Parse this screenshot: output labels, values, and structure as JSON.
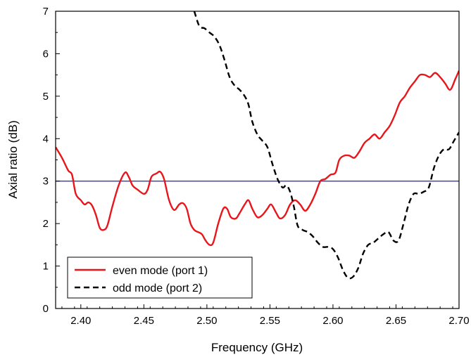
{
  "chart_data": {
    "type": "line",
    "title": "",
    "xlabel": "Frequency (GHz)",
    "ylabel": "Axial ratio (dB)",
    "xlim": [
      2.38,
      2.7
    ],
    "ylim": [
      0,
      7
    ],
    "x_ticks": [
      "2.40",
      "2.45",
      "2.50",
      "2.55",
      "2.60",
      "2.65",
      "2.70"
    ],
    "y_ticks": [
      "0",
      "1",
      "2",
      "3",
      "4",
      "5",
      "6",
      "7"
    ],
    "grid": false,
    "legend_position": "bottom-left",
    "reference_line": {
      "y": 3,
      "color": "#1f1fbf"
    },
    "series": [
      {
        "name": "even mode (port 1)",
        "color": "#e8151b",
        "style": "solid",
        "points": [
          [
            2.38,
            3.8
          ],
          [
            2.385,
            3.55
          ],
          [
            2.39,
            3.25
          ],
          [
            2.393,
            3.15
          ],
          [
            2.396,
            2.7
          ],
          [
            2.4,
            2.55
          ],
          [
            2.403,
            2.45
          ],
          [
            2.406,
            2.5
          ],
          [
            2.409,
            2.42
          ],
          [
            2.412,
            2.2
          ],
          [
            2.415,
            1.9
          ],
          [
            2.418,
            1.85
          ],
          [
            2.421,
            1.95
          ],
          [
            2.425,
            2.4
          ],
          [
            2.43,
            2.9
          ],
          [
            2.435,
            3.2
          ],
          [
            2.438,
            3.1
          ],
          [
            2.441,
            2.9
          ],
          [
            2.445,
            2.8
          ],
          [
            2.45,
            2.7
          ],
          [
            2.453,
            2.8
          ],
          [
            2.456,
            3.1
          ],
          [
            2.46,
            3.18
          ],
          [
            2.463,
            3.22
          ],
          [
            2.466,
            3.05
          ],
          [
            2.47,
            2.55
          ],
          [
            2.474,
            2.32
          ],
          [
            2.478,
            2.45
          ],
          [
            2.481,
            2.48
          ],
          [
            2.484,
            2.35
          ],
          [
            2.487,
            2.0
          ],
          [
            2.49,
            1.85
          ],
          [
            2.493,
            1.8
          ],
          [
            2.496,
            1.75
          ],
          [
            2.499,
            1.6
          ],
          [
            2.502,
            1.5
          ],
          [
            2.505,
            1.55
          ],
          [
            2.509,
            2.0
          ],
          [
            2.513,
            2.35
          ],
          [
            2.516,
            2.35
          ],
          [
            2.519,
            2.15
          ],
          [
            2.523,
            2.12
          ],
          [
            2.526,
            2.25
          ],
          [
            2.53,
            2.45
          ],
          [
            2.533,
            2.55
          ],
          [
            2.536,
            2.35
          ],
          [
            2.54,
            2.15
          ],
          [
            2.544,
            2.2
          ],
          [
            2.548,
            2.35
          ],
          [
            2.551,
            2.45
          ],
          [
            2.555,
            2.25
          ],
          [
            2.558,
            2.12
          ],
          [
            2.562,
            2.2
          ],
          [
            2.566,
            2.45
          ],
          [
            2.57,
            2.55
          ],
          [
            2.574,
            2.45
          ],
          [
            2.578,
            2.3
          ],
          [
            2.582,
            2.45
          ],
          [
            2.586,
            2.7
          ],
          [
            2.59,
            3.0
          ],
          [
            2.594,
            3.05
          ],
          [
            2.598,
            3.15
          ],
          [
            2.602,
            3.2
          ],
          [
            2.605,
            3.5
          ],
          [
            2.609,
            3.6
          ],
          [
            2.613,
            3.6
          ],
          [
            2.617,
            3.55
          ],
          [
            2.621,
            3.7
          ],
          [
            2.625,
            3.9
          ],
          [
            2.629,
            4.0
          ],
          [
            2.633,
            4.1
          ],
          [
            2.637,
            4.0
          ],
          [
            2.641,
            4.15
          ],
          [
            2.645,
            4.3
          ],
          [
            2.649,
            4.55
          ],
          [
            2.653,
            4.85
          ],
          [
            2.657,
            5.0
          ],
          [
            2.661,
            5.2
          ],
          [
            2.665,
            5.35
          ],
          [
            2.669,
            5.5
          ],
          [
            2.673,
            5.5
          ],
          [
            2.677,
            5.45
          ],
          [
            2.681,
            5.55
          ],
          [
            2.685,
            5.45
          ],
          [
            2.689,
            5.3
          ],
          [
            2.693,
            5.15
          ],
          [
            2.697,
            5.4
          ],
          [
            2.7,
            5.6
          ]
        ]
      },
      {
        "name": "odd mode (port 2)",
        "color": "#000000",
        "style": "dashed",
        "points": [
          [
            2.49,
            7.0
          ],
          [
            2.494,
            6.65
          ],
          [
            2.498,
            6.6
          ],
          [
            2.502,
            6.5
          ],
          [
            2.506,
            6.4
          ],
          [
            2.51,
            6.2
          ],
          [
            2.514,
            5.85
          ],
          [
            2.518,
            5.45
          ],
          [
            2.522,
            5.25
          ],
          [
            2.526,
            5.15
          ],
          [
            2.53,
            5.0
          ],
          [
            2.533,
            4.8
          ],
          [
            2.536,
            4.4
          ],
          [
            2.54,
            4.1
          ],
          [
            2.544,
            3.95
          ],
          [
            2.548,
            3.8
          ],
          [
            2.552,
            3.4
          ],
          [
            2.556,
            3.05
          ],
          [
            2.56,
            2.85
          ],
          [
            2.563,
            2.9
          ],
          [
            2.566,
            2.75
          ],
          [
            2.569,
            2.4
          ],
          [
            2.572,
            1.95
          ],
          [
            2.576,
            1.85
          ],
          [
            2.58,
            1.8
          ],
          [
            2.584,
            1.7
          ],
          [
            2.588,
            1.55
          ],
          [
            2.592,
            1.45
          ],
          [
            2.596,
            1.45
          ],
          [
            2.6,
            1.4
          ],
          [
            2.604,
            1.2
          ],
          [
            2.608,
            0.9
          ],
          [
            2.612,
            0.72
          ],
          [
            2.616,
            0.75
          ],
          [
            2.62,
            0.95
          ],
          [
            2.624,
            1.3
          ],
          [
            2.628,
            1.5
          ],
          [
            2.632,
            1.55
          ],
          [
            2.636,
            1.65
          ],
          [
            2.64,
            1.75
          ],
          [
            2.644,
            1.8
          ],
          [
            2.648,
            1.6
          ],
          [
            2.652,
            1.6
          ],
          [
            2.656,
            2.0
          ],
          [
            2.66,
            2.45
          ],
          [
            2.664,
            2.7
          ],
          [
            2.668,
            2.7
          ],
          [
            2.672,
            2.75
          ],
          [
            2.676,
            2.85
          ],
          [
            2.68,
            3.3
          ],
          [
            2.684,
            3.6
          ],
          [
            2.688,
            3.75
          ],
          [
            2.692,
            3.75
          ],
          [
            2.696,
            3.95
          ],
          [
            2.7,
            4.15
          ]
        ]
      }
    ]
  }
}
